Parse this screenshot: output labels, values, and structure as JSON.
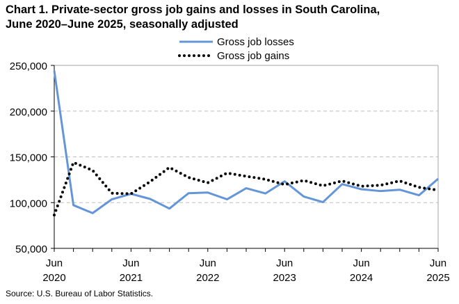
{
  "chart_data": {
    "type": "line",
    "title": "Chart 1. Private-sector gross job gains and losses in South Carolina, June 2020–June 2025, seasonally adjusted",
    "title_lines": [
      "Chart 1. Private-sector gross job gains and losses in South Carolina,",
      "June 2020–June 2025, seasonally adjusted"
    ],
    "xlabel": "",
    "ylabel": "",
    "x": [
      "Jun 2020",
      "Sep 2020",
      "Dec 2020",
      "Mar 2021",
      "Jun 2021",
      "Sep 2021",
      "Dec 2021",
      "Mar 2022",
      "Jun 2022",
      "Sep 2022",
      "Dec 2022",
      "Mar 2023",
      "Jun 2023",
      "Sep 2023",
      "Dec 2023",
      "Mar 2024",
      "Jun 2024",
      "Sep 2024",
      "Dec 2024",
      "Mar 2025",
      "Jun 2025"
    ],
    "x_tick_labels": [
      {
        "month": "Jun",
        "year": "2020"
      },
      {
        "month": "Jun",
        "year": "2021"
      },
      {
        "month": "Jun",
        "year": "2022"
      },
      {
        "month": "Jun",
        "year": "2023"
      },
      {
        "month": "Jun",
        "year": "2024"
      },
      {
        "month": "Jun",
        "year": "2025"
      }
    ],
    "ylim": [
      50000,
      250000
    ],
    "y_ticks": [
      "50,000",
      "100,000",
      "150,000",
      "200,000",
      "250,000"
    ],
    "grid": "horizontal dashed",
    "legend": "top-center",
    "series": [
      {
        "name": "Gross job losses",
        "style": "solid",
        "color": "#6495d8",
        "values": [
          244200,
          97200,
          88500,
          103600,
          109600,
          104000,
          93500,
          110300,
          111000,
          103600,
          115700,
          110000,
          123300,
          106600,
          100500,
          120200,
          114600,
          112600,
          114100,
          108000,
          126000
        ]
      },
      {
        "name": "Gross job gains",
        "style": "dotted",
        "color": "#000000",
        "values": [
          86400,
          143900,
          135300,
          110300,
          109600,
          123000,
          138400,
          127500,
          121700,
          132300,
          128800,
          125500,
          119700,
          124200,
          118400,
          123700,
          117900,
          119000,
          123700,
          116700,
          113600
        ]
      }
    ]
  },
  "source": "Source: U.S. Bureau of Labor Statistics."
}
